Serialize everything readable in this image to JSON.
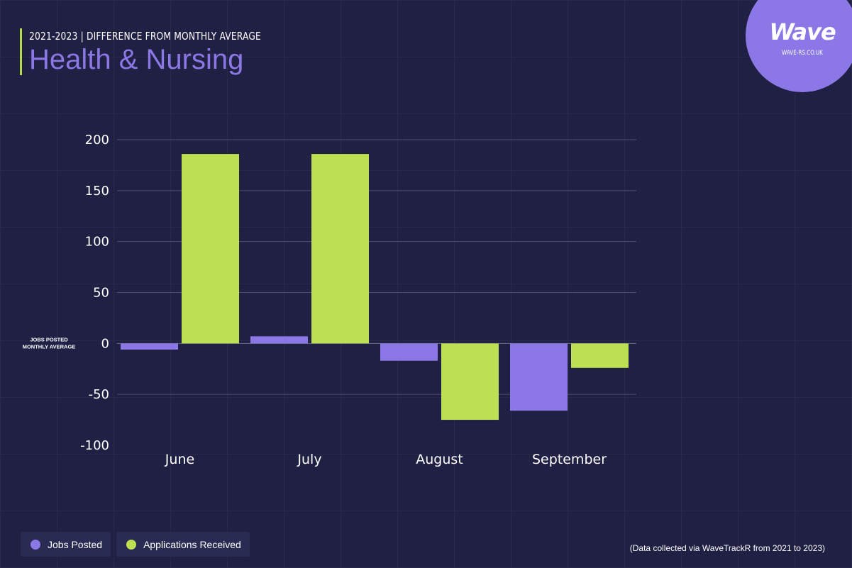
{
  "header": {
    "subtitle": "2021-2023 | DIFFERENCE FROM MONTHLY AVERAGE",
    "title": "Health & Nursing"
  },
  "logo": {
    "word": "Wave",
    "url": "WAVE-RS.CO.UK"
  },
  "colors": {
    "background": "#1f2043",
    "jobs": "#8b78e6",
    "applications": "#bde053",
    "accent": "#b5d94a"
  },
  "chart_data": {
    "type": "bar",
    "categories": [
      "June",
      "July",
      "August",
      "September"
    ],
    "series": [
      {
        "name": "Jobs Posted",
        "values": [
          -6,
          7,
          -17,
          -66
        ]
      },
      {
        "name": "Applications Received",
        "values": [
          186,
          186,
          -75,
          -24
        ]
      }
    ],
    "ylim": [
      -100,
      200
    ],
    "yticks": [
      200,
      150,
      100,
      50,
      0,
      -50,
      -100
    ],
    "zero_label": [
      "JOBS POSTED",
      "MONTHLY AVERAGE"
    ],
    "grid": true,
    "legend": "bottom-left"
  },
  "legend": [
    {
      "label": "Jobs Posted"
    },
    {
      "label": "Applications Received"
    }
  ],
  "source": "(Data collected via WaveTrackR from 2021 to 2023)"
}
